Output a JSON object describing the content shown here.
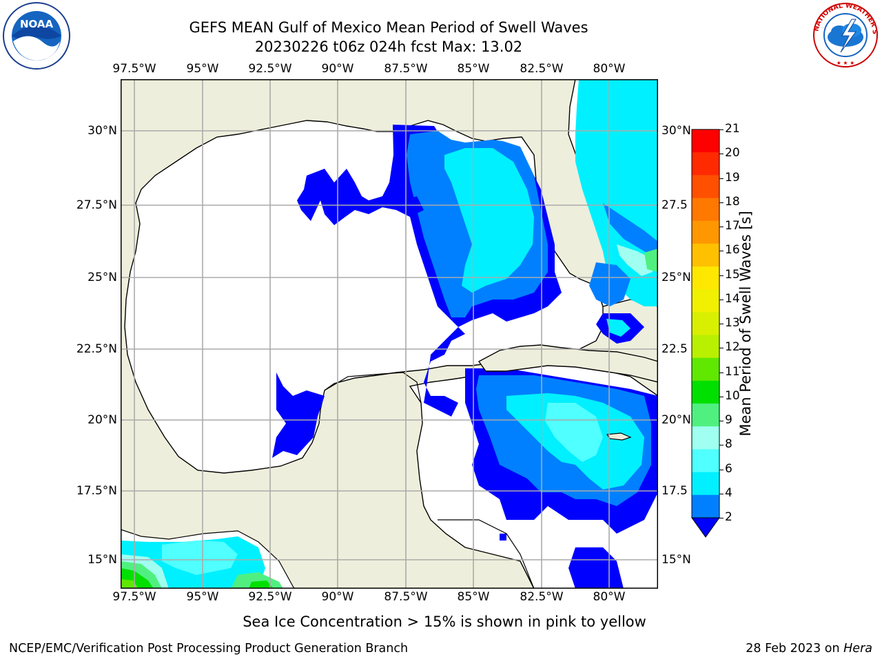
{
  "header": {
    "title_line1": "GEFS MEAN Gulf of Mexico Mean Period of Swell Waves",
    "title_line2": "20230226 t06z 024h fcst   Max: 13.02"
  },
  "logos": {
    "left_name": "NOAA",
    "left_ring": "NATIONAL OCEANIC AND ATMOSPHERIC ADMINISTRATION · U.S. DEPARTMENT OF COMMERCE",
    "right_ring": "NATIONAL WEATHER SERVICE"
  },
  "axes": {
    "lon_ticks": [
      "97.5°W",
      "95°W",
      "92.5°W",
      "90°W",
      "87.5°W",
      "85°W",
      "82.5°W",
      "80°W"
    ],
    "lat_ticks_left": [
      "30°N",
      "27.5°N",
      "25°N",
      "22.5°N",
      "20°N",
      "17.5°N",
      "15°N"
    ],
    "lat_ticks_right": [
      "30°N",
      "27.5",
      "25°N",
      "22.5",
      "20°N",
      "17.5",
      "15°N"
    ]
  },
  "colorbar": {
    "label": "Mean Period of Swell Waves [s]",
    "ticks": [
      "21",
      "20",
      "19",
      "18",
      "17",
      "16",
      "15",
      "14",
      "13",
      "12",
      "11",
      "10",
      "9",
      "8",
      "6",
      "4",
      "2"
    ],
    "colors": [
      "#ff0000",
      "#ff2a00",
      "#ff5000",
      "#ff7800",
      "#ff9800",
      "#ffc000",
      "#ffe800",
      "#f0f000",
      "#d8f000",
      "#b8f000",
      "#60e800",
      "#00e000",
      "#50f080",
      "#a0fff0",
      "#50ffff",
      "#00f0ff",
      "#0080ff"
    ],
    "extend_color": "#0000ff"
  },
  "map_colors": {
    "land": "#eeeedc",
    "ocean_nodata": "#ffffff",
    "c2_4": "#0000ff",
    "c4_6": "#0080ff",
    "c6_8": "#00f0ff",
    "c8_9": "#50ffff",
    "c9_10": "#a0fff0",
    "c10_11": "#50f080",
    "c11_12": "#00e000",
    "c12_13": "#60e800",
    "grid": "#aaaaaa"
  },
  "footer": {
    "note": "Sea Ice Concentration > 15% is shown in pink to yellow",
    "org": "NCEP/EMC/Verification Post Processing Product Generation Branch",
    "date": "28 Feb 2023 on ",
    "machine": "Hera"
  }
}
